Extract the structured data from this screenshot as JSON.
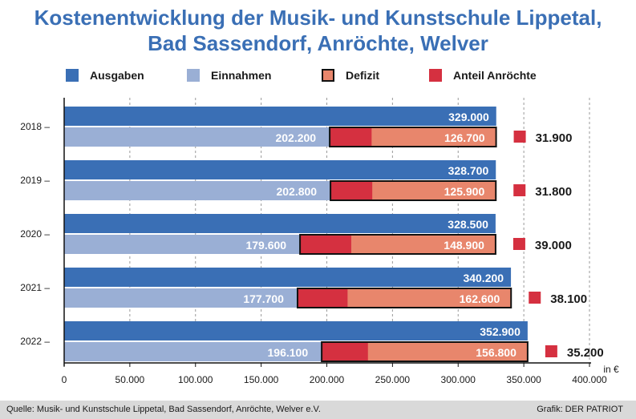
{
  "title_line1": "Kostenentwicklung der Musik- und Kunstschule Lippetal,",
  "title_line2": "Bad Sassendorf, Anröchte, Welver",
  "legend": [
    {
      "label": "Ausgaben",
      "color": "#3a6fb5"
    },
    {
      "label": "Einnahmen",
      "color": "#9aafd5"
    },
    {
      "label": "Defizit",
      "color": "#e8866c"
    },
    {
      "label": "Anteil Anröchte",
      "color": "#d53040"
    }
  ],
  "footer": {
    "source": "Quelle: Musik- und Kunstschule Lippetal, Bad Sassendorf, Anröchte, Welver e.V.",
    "credit": "Grafik: DER PATRIOT"
  },
  "chart_data": {
    "type": "bar",
    "orientation": "horizontal",
    "categories": [
      "2018",
      "2019",
      "2020",
      "2021",
      "2022"
    ],
    "series": [
      {
        "name": "Ausgaben",
        "values": [
          329000,
          328700,
          328500,
          340200,
          352900
        ],
        "labels": [
          "329.000",
          "328.700",
          "328.500",
          "340.200",
          "352.900"
        ],
        "color": "#3a6fb5"
      },
      {
        "name": "Einnahmen",
        "values": [
          202200,
          202800,
          179600,
          177700,
          196100
        ],
        "labels": [
          "202.200",
          "202.800",
          "179.600",
          "177.700",
          "196.100"
        ],
        "color": "#9aafd5"
      },
      {
        "name": "Defizit",
        "values": [
          126700,
          125900,
          148900,
          162600,
          156800
        ],
        "labels": [
          "126.700",
          "125.900",
          "148.900",
          "162.600",
          "156.800"
        ],
        "color": "#e8866c"
      },
      {
        "name": "Anteil Anröchte",
        "values": [
          31900,
          31800,
          39000,
          38100,
          35200
        ],
        "labels": [
          "31.900",
          "31.800",
          "39.000",
          "38.100",
          "35.200"
        ],
        "color": "#d53040"
      }
    ],
    "xlim": [
      0,
      400000
    ],
    "xticks": [
      0,
      50000,
      100000,
      150000,
      200000,
      250000,
      300000,
      350000,
      400000
    ],
    "xtick_labels": [
      "0",
      "50.000",
      "100.000",
      "150.000",
      "200.000",
      "250.000",
      "300.000",
      "350.000",
      "400.000"
    ],
    "unit_label": "in €",
    "grid": "vertical dashed",
    "legend_position": "top"
  }
}
